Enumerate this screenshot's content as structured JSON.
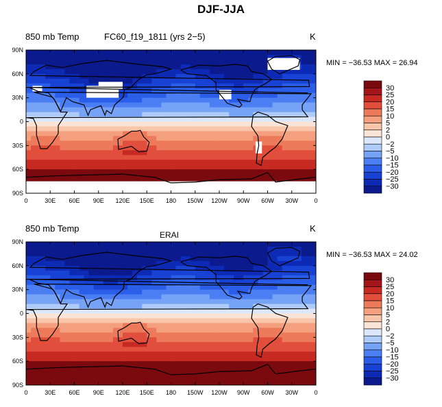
{
  "title": "DJF-JJA",
  "colors": [
    "#0b1a8c",
    "#0d2ab5",
    "#1842d4",
    "#2a5ee8",
    "#4a7ef2",
    "#77a3f7",
    "#aecbf9",
    "#dbe8fb",
    "#fbe4d6",
    "#f8c6aa",
    "#f4a07e",
    "#ed7a5b",
    "#e14e3c",
    "#c72a22",
    "#a4151a",
    "#7b0a0f"
  ],
  "colorbar_levels": [
    "30",
    "25",
    "20",
    "15",
    "10",
    "5",
    "2",
    "0",
    "−2",
    "−5",
    "−10",
    "−15",
    "−20",
    "−25",
    "−30"
  ],
  "x_ticks": [
    "0",
    "30E",
    "60E",
    "90E",
    "120E",
    "150E",
    "180",
    "150W",
    "120W",
    "90W",
    "60W",
    "30W",
    "0"
  ],
  "y_ticks": [
    "90N",
    "60N",
    "30N",
    "0",
    "30S",
    "60S",
    "90S"
  ],
  "chart_data": [
    {
      "type": "heatmap",
      "variable_label": "850 mb Temp",
      "case_label": "FC60_f19_1811 (yrs 2−5)",
      "units": "K",
      "stats": "MIN = −36.53  MAX =   26.94",
      "min": -36.53,
      "max": 26.94,
      "xlim": [
        0,
        360
      ],
      "ylim": [
        -90,
        90
      ],
      "color_levels": [
        -30,
        -25,
        -20,
        -15,
        -10,
        -5,
        -2,
        0,
        2,
        5,
        10,
        15,
        20,
        25,
        30
      ]
    },
    {
      "type": "heatmap",
      "variable_label": "850 mb Temp",
      "case_label": "ERAI",
      "units": "K",
      "stats": "MIN = −36.53  MAX =   24.02",
      "min": -36.53,
      "max": 24.02,
      "xlim": [
        0,
        360
      ],
      "ylim": [
        -90,
        90
      ],
      "color_levels": [
        -30,
        -25,
        -20,
        -15,
        -10,
        -5,
        -2,
        0,
        2,
        5,
        10,
        15,
        20,
        25,
        30
      ]
    }
  ]
}
